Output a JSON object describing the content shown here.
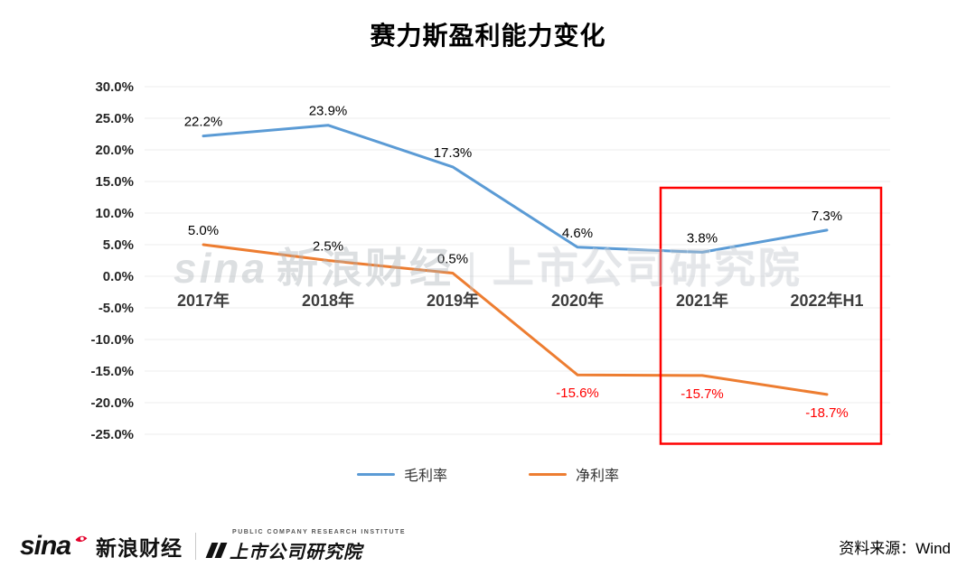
{
  "title": "赛力斯盈利能力变化",
  "chart_data": {
    "type": "line",
    "categories": [
      "2017年",
      "2018年",
      "2019年",
      "2020年",
      "2021年",
      "2022年H1"
    ],
    "series": [
      {
        "name": "毛利率",
        "color": "#5B9BD5",
        "values": [
          22.2,
          23.9,
          17.3,
          4.6,
          3.8,
          7.3
        ]
      },
      {
        "name": "净利率",
        "color": "#ED7D31",
        "values": [
          5.0,
          2.5,
          0.5,
          -15.6,
          -15.7,
          -18.7
        ]
      }
    ],
    "ylim": [
      -25,
      30
    ],
    "ytick_step": 5,
    "grid": true,
    "legend_position": "bottom",
    "negative_label_color": "#FF0000",
    "highlight": {
      "categories": [
        "2021年",
        "2022年H1"
      ],
      "color": "#FF0000",
      "y_top": 14,
      "y_bottom": -26.5
    }
  },
  "watermark": {
    "latin": "sina",
    "cn": "新浪财经",
    "divider": "|",
    "institute": "上市公司研究院"
  },
  "footer": {
    "sina_latin": "sina",
    "sina_cn": "新浪财经",
    "institute_en": "PUBLIC COMPANY RESEARCH INSTITUTE",
    "institute_cn": "上市公司研究院",
    "source": "资料来源：Wind"
  }
}
